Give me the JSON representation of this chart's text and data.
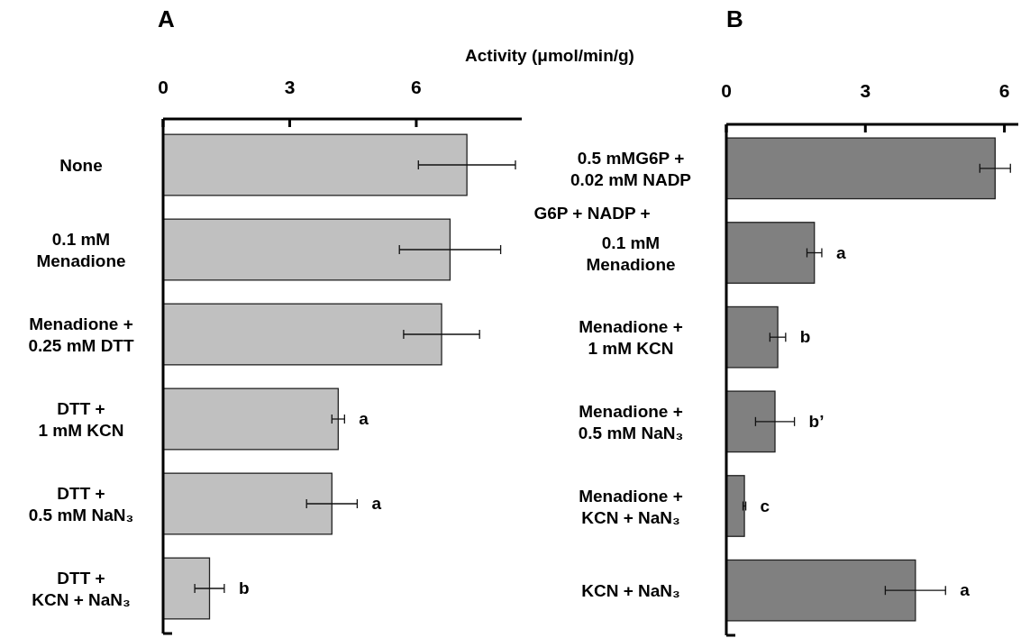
{
  "chart_data": [
    {
      "type": "bar",
      "orientation": "horizontal",
      "title": "A",
      "xlabel": "Activity (μmol/min/g)",
      "categories": [
        "None",
        "0.1 mM\nMenadione",
        "Menadione +\n0.25 mM DTT",
        "DTT +\n1 mM KCN",
        "DTT +\n0.5 mM NaN₃",
        "DTT +\nKCN + NaN₃"
      ],
      "values": [
        7.2,
        6.8,
        6.6,
        4.15,
        4.0,
        1.1
      ],
      "errors": [
        1.15,
        1.2,
        0.9,
        0.15,
        0.6,
        0.35
      ],
      "value_labels": [
        null,
        null,
        null,
        "a",
        "a",
        "b"
      ],
      "color": "#c0c0c0",
      "xlim": [
        0,
        8.5
      ],
      "xticks": [
        0,
        3,
        6
      ]
    },
    {
      "type": "bar",
      "orientation": "horizontal",
      "title": "B",
      "categories": [
        "0.5 mMG6P +\n0.02 mM NADP",
        "0.1 mM\nMenadione",
        "Menadione +\n1 mM KCN",
        "Menadione +\n0.5 mM NaN₃",
        "Menadione +\nKCN + NaN₃",
        "KCN + NaN₃"
      ],
      "values": [
        5.8,
        1.9,
        1.11,
        1.05,
        0.39,
        4.08
      ],
      "errors": [
        0.33,
        0.16,
        0.17,
        0.42,
        0.03,
        0.65
      ],
      "value_labels": [
        null,
        "a",
        "b",
        "b’",
        "c",
        "a"
      ],
      "color": "#808080",
      "xlim": [
        0,
        6.3
      ],
      "xticks": [
        0,
        3,
        6
      ],
      "annotations": [
        "G6P + NADP +"
      ]
    }
  ]
}
